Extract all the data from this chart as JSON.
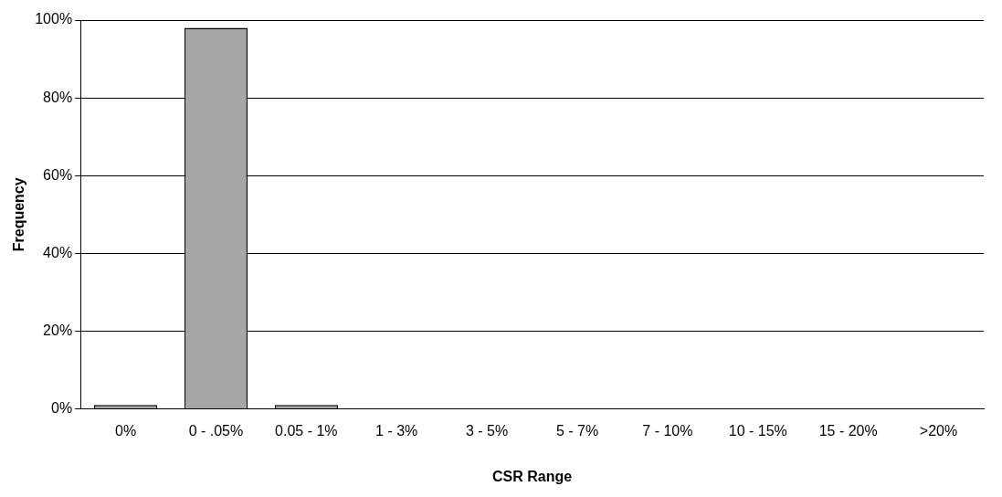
{
  "chart_data": {
    "type": "bar",
    "xlabel": "CSR Range",
    "ylabel": "Frequency",
    "categories": [
      "0%",
      "0 - .05%",
      "0.05 - 1%",
      "1 - 3%",
      "3 - 5%",
      "5 - 7%",
      "7 - 10%",
      "10 - 15%",
      "15 - 20%",
      ">20%"
    ],
    "values": [
      1,
      98,
      1,
      0,
      0,
      0,
      0,
      0,
      0,
      0
    ],
    "color": "#a6a6a6",
    "ylim": [
      0,
      100
    ],
    "yticks": [
      {
        "value": 0,
        "label": "0%"
      },
      {
        "value": 20,
        "label": "20%"
      },
      {
        "value": 40,
        "label": "40%"
      },
      {
        "value": 60,
        "label": "60%"
      },
      {
        "value": 80,
        "label": "80%"
      },
      {
        "value": 100,
        "label": "100%"
      }
    ],
    "grid": "y",
    "legend": false
  }
}
